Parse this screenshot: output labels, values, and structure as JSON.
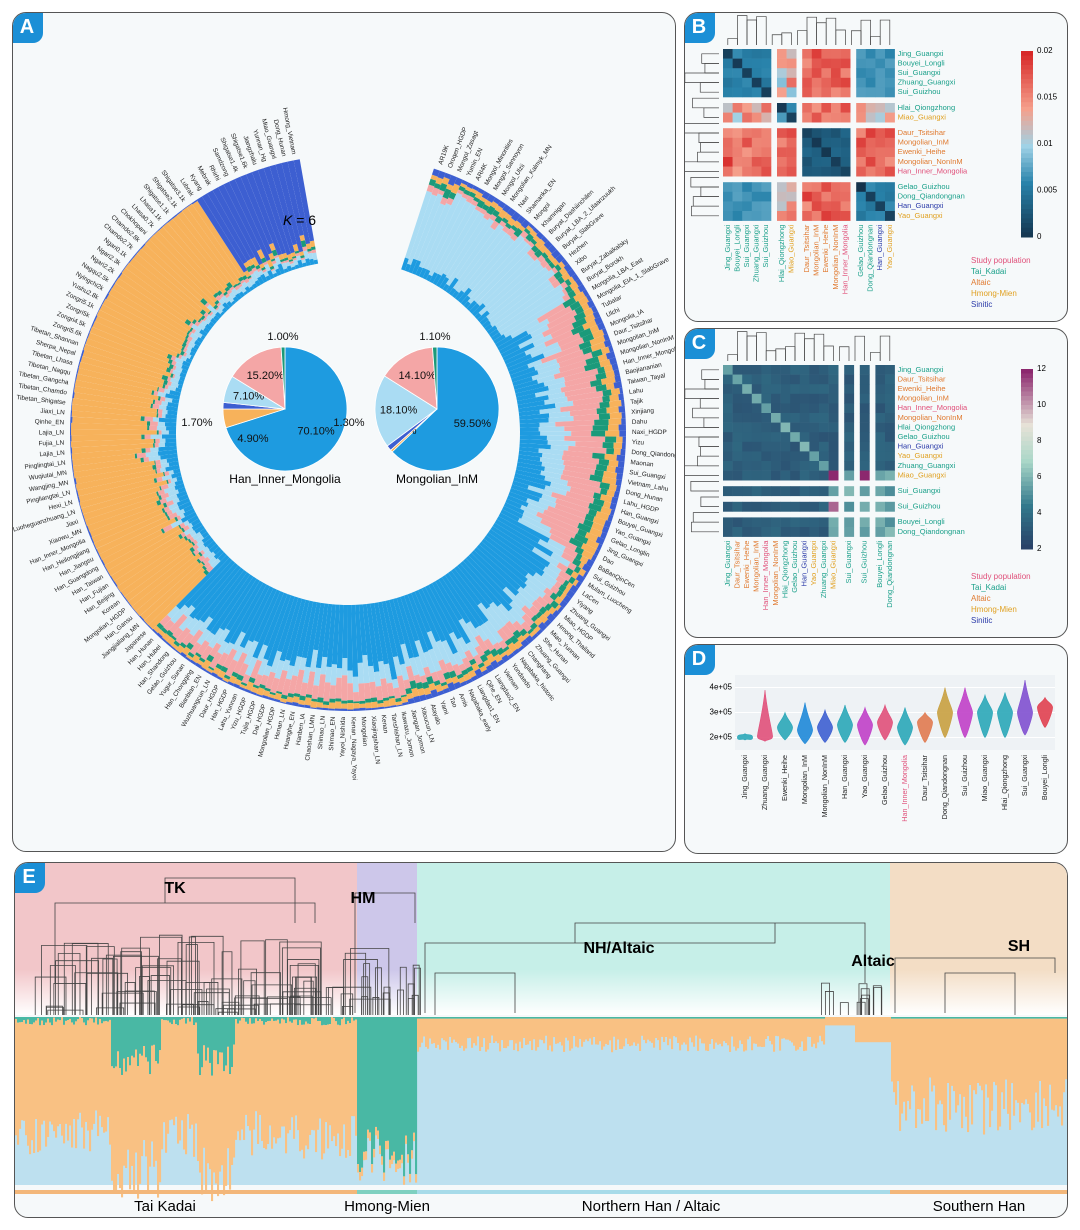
{
  "colors": {
    "blue": "#1e9be0",
    "pink": "#f4a6a6",
    "orange": "#f7b25b",
    "lightblue": "#aadcf3",
    "green": "#1b9a7a",
    "darkblue": "#3d5fd1",
    "ochre": "#f9c183",
    "teal": "#49b8a4",
    "sky": "#bde0ef"
  },
  "panels": {
    "a": "A",
    "b": "B",
    "c": "C",
    "d": "D",
    "e": "E"
  },
  "panel_a": {
    "k_prefix": "K",
    "k_value": " = 6",
    "pies": [
      {
        "name": "Han_Inner_Mongolia",
        "slices": [
          {
            "value": 70.1,
            "label": "70.10%",
            "color": "#1e9be0"
          },
          {
            "value": 4.9,
            "label": "4.90%",
            "color": "#f7b25b"
          },
          {
            "value": 1.7,
            "label": "1.70%",
            "color": "#3d5fd1"
          },
          {
            "value": 7.1,
            "label": "7.10%",
            "color": "#aadcf3"
          },
          {
            "value": 15.2,
            "label": "15.20%",
            "color": "#f4a6a6"
          },
          {
            "value": 1.0,
            "label": "1.00%",
            "color": "#1b9a7a"
          }
        ]
      },
      {
        "name": "Mongolian_InM",
        "slices": [
          {
            "value": 59.5,
            "label": "59.50%",
            "color": "#1e9be0"
          },
          {
            "value": 0.57,
            "label": "0.57%",
            "color": "#f7b25b"
          },
          {
            "value": 1.3,
            "label": "1.30%",
            "color": "#3d5fd1"
          },
          {
            "value": 18.1,
            "label": "18.10%",
            "color": "#aadcf3"
          },
          {
            "value": 14.1,
            "label": "14.10%",
            "color": "#f4a6a6"
          },
          {
            "value": 1.1,
            "label": "1.10%",
            "color": "#1b9a7a"
          }
        ]
      }
    ],
    "ring_labels": [
      "AR19K",
      "Oroqen_HGDP",
      "Mongol_Zasagt",
      "Yumin_EN",
      "ARI4K",
      "Mongol_Minorities",
      "Mongol_Sannoyon",
      "Mongol_Ulzii",
      "Mongolian_Kalmyk_MN",
      "Naxi",
      "Shamanka_EN",
      "Mongol",
      "Khamnigan",
      "Buryat_Dashiinchilen",
      "Buryat_LBA_2_Ulaanzuukh",
      "Buryat_SlabGrave",
      "Hezhen",
      "Xibo",
      "Buryat_Zabaikalsky",
      "Buryat_Borokh",
      "Mongolia_LBA_East",
      "Mongolia_EIA_1_SlabGrave",
      "Tubalar",
      "Ulchi",
      "Mongolia_IA",
      "Daur_Tsitsihar",
      "Mongolian_InM",
      "Mongolian_NonInM",
      "Han_Inner_Mongolia",
      "Baojiananian",
      "Taiwan_Tayal",
      "Lahu",
      "Tajik",
      "Xinjiang",
      "Dahu",
      "Naxi_HGDP",
      "Yizu",
      "Dong_Qiandongnan",
      "Maonan",
      "Sui_Guangxi",
      "Vietnam_Lahu",
      "Dong_Hunan",
      "Lahu_HGDP",
      "Han_Guangxi",
      "Bouyei_Guangxi",
      "Yao_Guangxi",
      "Gelao_Longlin",
      "Jing_Guangxi",
      "Dao",
      "BaBanQinCen",
      "Sui_Guizhou",
      "Mulam_Luocheng",
      "LaCen",
      "Yiyang",
      "Zhuang_Guangxi",
      "Miao_HGDP",
      "Hmong_Thailand",
      "Miao_Yunnan",
      "She_Hunan",
      "Zhuang_Guangxi",
      "Changhang",
      "Nagabaka_historic",
      "Yondaedo",
      "Vietnam",
      "Liangdao2_EN",
      "Qihe_EN",
      "Liangdao1_EN",
      "Nagabaka_early",
      "Amis",
      "Tao",
      "Yami",
      "Atayalo",
      "Xitoucun_LN",
      "Jiangan_Jomon",
      "Ikawazu_Jomon",
      "Tanshishan_LN",
      "Kenan",
      "Xiaojingshan_LN",
      "Mongolian",
      "Kenan_Nagaya_Yayoi",
      "Yayoi_Nishida",
      "Shimao_EN",
      "Shimao_LN",
      "Chaoshan_LMN",
      "Hanben_IA",
      "Huanghe_EN",
      "Henan_LN",
      "Mongolian_HGDP",
      "Dai_HGDP",
      "Tujia_HGDP",
      "Yizu_HGDP",
      "Lahu_Yunnan",
      "Han_HGDP",
      "Daur_HGDP",
      "Wuzhuangcun_LN",
      "Bianbian_EN",
      "Han_Chongqing",
      "Yugur_Sunan",
      "Gelao_Guizhou",
      "Han_Shandong",
      "Han_Hubei",
      "Han_Hunan",
      "Japanese",
      "Jiangjialiang_MN",
      "Han_Gansu",
      "Mongolian_HGDP",
      "Korean",
      "Han_Beijing",
      "Han_Fujian",
      "Han_Taiwan",
      "Han_Guangdong",
      "Han_Jiangsu",
      "Han_Heilongjiang",
      "Han_Inner_Mongolia",
      "Xiaowu_MN",
      "Jiaxi",
      "Luoheguanzhuang_LN",
      "Hexi_LN",
      "Pingliangtai_LN",
      "Wangjing_MN",
      "Wuqiutai_MN",
      "Pinglingtai_LN",
      "Lajia_LN",
      "Fujia_LN",
      "Lajia_LN",
      "Qinhe_EN",
      "Jiaxi_LN",
      "Tibetan_Shigatse",
      "Tibetan_Chamdo",
      "Tibetan_Gangcha",
      "Tibetan_Nagqu",
      "Tibetan_Lhasa",
      "Sherpa_Nepal",
      "Tibetan_Shannan",
      "Zongri5.6k",
      "Zongri4.5k",
      "Zongri5k",
      "Zongri5.1k",
      "Yushu2.8k",
      "Nyingchi2k",
      "Nagqu2.5k",
      "Ngari2.2k",
      "Ngari2.3k",
      "Ngari0.1k",
      "Chamdo2.7k",
      "Chamdo2.8k",
      "Chokhopani",
      "Lhasa0.7k",
      "Lhasa1.1k",
      "Shigatse1.1k",
      "Shigatse2.1k",
      "Shigatse3.1k",
      "Lubrak",
      "Kyang",
      "Mebrak",
      "Rhirhi",
      "Samdzong",
      "Shigatse1.4k",
      "Shigatse1.6k",
      "Jiangzhalu",
      "Yunnan_Hg",
      "Miao_Guangxi",
      "Dong_Hunan",
      "Hmong_Vietnam"
    ]
  },
  "panel_b": {
    "rows": [
      "Jing_Guangxi",
      "Bouyei_Longli",
      "Sui_Guangxi",
      "Zhuang_Guangxi",
      "Sui_Guizhou",
      "Hlai_Qiongzhong",
      "Miao_Guangxi",
      "Daur_Tsitsihar",
      "Mongolian_InM",
      "Ewenki_Heihe",
      "Mongolian_NonInM",
      "Han_Inner_Mongolia",
      "Gelao_Guizhou",
      "Dong_Qiandongnan",
      "Han_Guangxi",
      "Yao_Guangxi"
    ],
    "cols": [
      "Jing_Guangxi",
      "Bouyei_Longli",
      "Sui_Guangxi",
      "Zhuang_Guangxi",
      "Sui_Guizhou",
      "Hlai_Qiongzhong",
      "Miao_Guangxi",
      "Daur_Tsitsihar",
      "Mongolian_InM",
      "Ewenki_Heihe",
      "Mongolian_NonInM",
      "Han_Inner_Mongolia",
      "Gelao_Guizhou",
      "Dong_Qiandongnan",
      "Han_Guangxi",
      "Yao_Guangxi"
    ],
    "scale_ticks": [
      "0.02",
      "0.015",
      "0.01",
      "0.005",
      "0"
    ],
    "legend": [
      "Study population",
      "Tai_Kadai",
      "Altaic",
      "Hmong-Mien",
      "Sinitic"
    ]
  },
  "panel_c": {
    "rows": [
      "Jing_Guangxi",
      "Daur_Tsitsihar",
      "Ewenki_Heihe",
      "Mongolian_InM",
      "Han_Inner_Mongolia",
      "Mongolian_NonInM",
      "Hlai_Qiongzhong",
      "Gelao_Guizhou",
      "Han_Guangxi",
      "Yao_Guangxi",
      "Zhuang_Guangxi",
      "Miao_Guangxi",
      "Sui_Guangxi",
      "Sui_Guizhou",
      "Bouyei_Longli",
      "Dong_Qiandongnan"
    ],
    "cols": [
      "Jing_Guangxi",
      "Daur_Tsitsihar",
      "Ewenki_Heihe",
      "Mongolian_InM",
      "Han_Inner_Mongolia",
      "Mongolian_NonInM",
      "Hlai_Qiongzhong",
      "Gelao_Guizhou",
      "Han_Guangxi",
      "Yao_Guangxi",
      "Zhuang_Guangxi",
      "Miao_Guangxi",
      "Sui_Guangxi",
      "Sui_Guizhou",
      "Bouyei_Longli",
      "Dong_Qiandongnan"
    ],
    "scale_ticks": [
      "12",
      "10",
      "8",
      "6",
      "4",
      "2"
    ],
    "legend": [
      "Study population",
      "Tai_Kadai",
      "Altaic",
      "Hmong-Mien",
      "Sinitic"
    ]
  },
  "panel_d": {
    "yticks": [
      "4e+05",
      "3e+05",
      "2e+05"
    ],
    "ylim": [
      150000,
      450000
    ],
    "violins": [
      {
        "name": "Jing_Guangxi",
        "median": 200000,
        "min": 190000,
        "max": 215000,
        "color": "#2aa7b8"
      },
      {
        "name": "Zhuang_Guangxi",
        "median": 205000,
        "min": 185000,
        "max": 390000,
        "color": "#e0507a"
      },
      {
        "name": "Ewenki_Heihe",
        "median": 240000,
        "min": 190000,
        "max": 300000,
        "color": "#2aa7b8"
      },
      {
        "name": "Mongolian_InM",
        "median": 230000,
        "min": 175000,
        "max": 340000,
        "color": "#1e88d8"
      },
      {
        "name": "Mongolian_NonInM",
        "median": 240000,
        "min": 180000,
        "max": 310000,
        "color": "#3d5fd1"
      },
      {
        "name": "Han_Guangxi",
        "median": 250000,
        "min": 180000,
        "max": 330000,
        "color": "#2aa7b8"
      },
      {
        "name": "Yao_Guangxi",
        "median": 250000,
        "min": 170000,
        "max": 320000,
        "color": "#c040c8"
      },
      {
        "name": "Gelao_Guizhou",
        "median": 260000,
        "min": 190000,
        "max": 330000,
        "color": "#e0507a"
      },
      {
        "name": "Han_Inner_Mongolia",
        "median": 240000,
        "min": 170000,
        "max": 320000,
        "color": "#2aa7b8"
      },
      {
        "name": "Daur_Tsitsihar",
        "median": 260000,
        "min": 180000,
        "max": 300000,
        "color": "#e07a50"
      },
      {
        "name": "Dong_Qiandongnan",
        "median": 300000,
        "min": 200000,
        "max": 400000,
        "color": "#c8a040"
      },
      {
        "name": "Sui_Guizhou",
        "median": 300000,
        "min": 200000,
        "max": 400000,
        "color": "#c040c8"
      },
      {
        "name": "Miao_Guangxi",
        "median": 300000,
        "min": 200000,
        "max": 370000,
        "color": "#2aa7b8"
      },
      {
        "name": "Hlai_Qiongzhong",
        "median": 300000,
        "min": 200000,
        "max": 380000,
        "color": "#2aa7b8"
      },
      {
        "name": "Sui_Guangxi",
        "median": 300000,
        "min": 210000,
        "max": 430000,
        "color": "#8050d0"
      },
      {
        "name": "Bouyei_Longli",
        "median": 320000,
        "min": 240000,
        "max": 360000,
        "color": "#e04050"
      }
    ]
  },
  "panel_e": {
    "group_labels": [
      "TK",
      "HM",
      "NH/Altaic",
      "Altaic",
      "SH"
    ],
    "bottom_labels": [
      "Tai Kadai",
      "Hmong-Mien",
      "Northern Han / Altaic",
      "Southern Han"
    ]
  }
}
